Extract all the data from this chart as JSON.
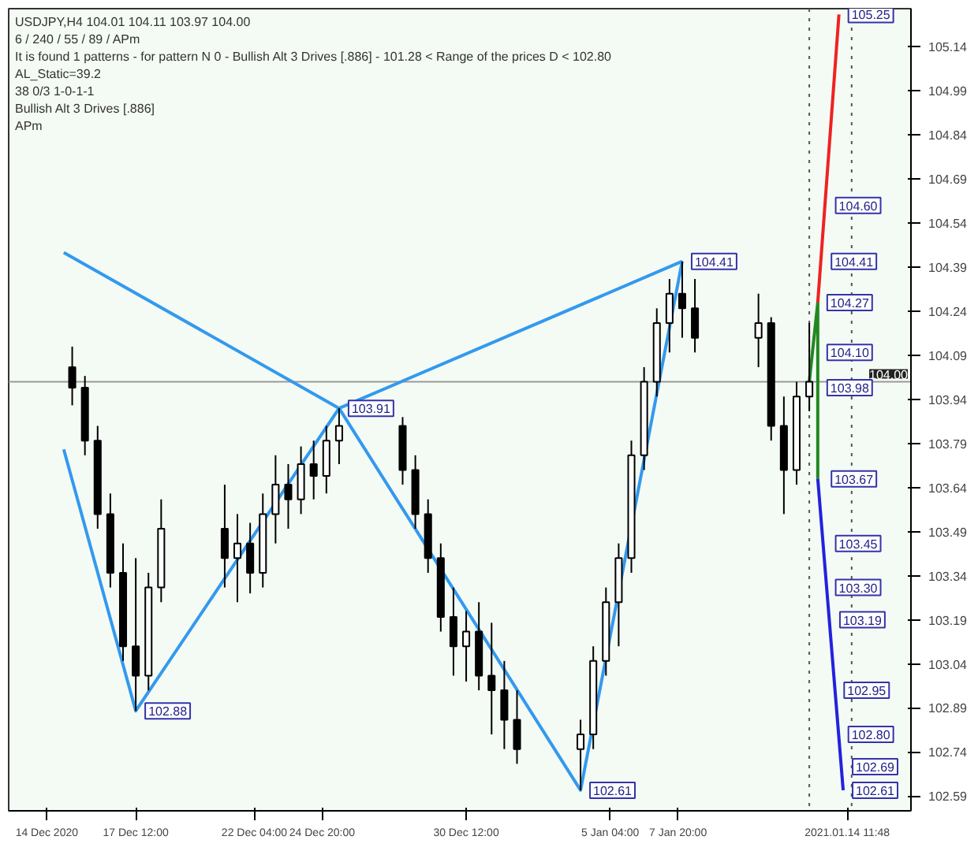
{
  "chart_data": {
    "type": "candlestick",
    "x": [
      "2020-12-15T00:00",
      "2020-12-15T12:00",
      "2020-12-16T00:00",
      "2020-12-16T12:00",
      "2020-12-17T00:00",
      "2020-12-17T12:00",
      "2020-12-18T00:00",
      "2020-12-18T12:00",
      "2020-12-21T00:00",
      "2020-12-21T12:00",
      "2020-12-22T00:00",
      "2020-12-22T12:00",
      "2020-12-23T00:00",
      "2020-12-23T12:00",
      "2020-12-24T00:00",
      "2020-12-24T12:00",
      "2020-12-25T00:00",
      "2020-12-25T12:00",
      "2020-12-28T00:00",
      "2020-12-28T12:00",
      "2020-12-29T00:00",
      "2020-12-29T12:00",
      "2020-12-30T00:00",
      "2020-12-30T12:00",
      "2020-12-31T00:00",
      "2020-12-31T12:00",
      "2021-01-01T00:00",
      "2021-01-01T12:00",
      "2021-01-04T00:00",
      "2021-01-04T12:00",
      "2021-01-05T00:00",
      "2021-01-05T12:00",
      "2021-01-06T00:00",
      "2021-01-06T12:00",
      "2021-01-07T00:00",
      "2021-01-07T12:00",
      "2021-01-08T00:00",
      "2021-01-08T12:00",
      "2021-01-11T00:00",
      "2021-01-11T12:00",
      "2021-01-12T00:00",
      "2021-01-12T12:00",
      "2021-01-13T00:00"
    ],
    "ohlc": [
      [
        104.05,
        104.12,
        103.92,
        103.98
      ],
      [
        103.98,
        104.02,
        103.75,
        103.8
      ],
      [
        103.8,
        103.85,
        103.5,
        103.55
      ],
      [
        103.55,
        103.62,
        103.3,
        103.35
      ],
      [
        103.35,
        103.45,
        103.05,
        103.1
      ],
      [
        103.1,
        103.4,
        102.88,
        103.0
      ],
      [
        103.0,
        103.35,
        102.95,
        103.3
      ],
      [
        103.3,
        103.6,
        103.25,
        103.5
      ],
      [
        103.5,
        103.65,
        103.3,
        103.4
      ],
      [
        103.4,
        103.55,
        103.25,
        103.45
      ],
      [
        103.45,
        103.52,
        103.28,
        103.35
      ],
      [
        103.35,
        103.62,
        103.3,
        103.55
      ],
      [
        103.55,
        103.75,
        103.45,
        103.65
      ],
      [
        103.65,
        103.72,
        103.5,
        103.6
      ],
      [
        103.6,
        103.78,
        103.55,
        103.72
      ],
      [
        103.72,
        103.8,
        103.6,
        103.68
      ],
      [
        103.68,
        103.85,
        103.62,
        103.8
      ],
      [
        103.8,
        103.91,
        103.72,
        103.85
      ],
      [
        103.85,
        103.88,
        103.65,
        103.7
      ],
      [
        103.7,
        103.75,
        103.5,
        103.55
      ],
      [
        103.55,
        103.6,
        103.35,
        103.4
      ],
      [
        103.4,
        103.45,
        103.15,
        103.2
      ],
      [
        103.2,
        103.3,
        103.0,
        103.1
      ],
      [
        103.1,
        103.22,
        102.98,
        103.15
      ],
      [
        103.15,
        103.25,
        102.95,
        103.0
      ],
      [
        103.0,
        103.18,
        102.8,
        102.95
      ],
      [
        102.95,
        103.05,
        102.75,
        102.85
      ],
      [
        102.85,
        102.95,
        102.7,
        102.75
      ],
      [
        102.75,
        102.85,
        102.61,
        102.8
      ],
      [
        102.8,
        103.1,
        102.75,
        103.05
      ],
      [
        103.05,
        103.3,
        103.0,
        103.25
      ],
      [
        103.25,
        103.45,
        103.1,
        103.4
      ],
      [
        103.4,
        103.8,
        103.35,
        103.75
      ],
      [
        103.75,
        104.05,
        103.7,
        104.0
      ],
      [
        104.0,
        104.25,
        103.95,
        104.2
      ],
      [
        104.2,
        104.35,
        104.1,
        104.3
      ],
      [
        104.3,
        104.41,
        104.15,
        104.25
      ],
      [
        104.25,
        104.35,
        104.1,
        104.15
      ],
      [
        104.15,
        104.3,
        104.05,
        104.2
      ],
      [
        104.2,
        104.22,
        103.8,
        103.85
      ],
      [
        103.85,
        103.95,
        103.55,
        103.7
      ],
      [
        103.7,
        104.0,
        103.65,
        103.95
      ],
      [
        103.95,
        104.2,
        103.9,
        104.0
      ]
    ],
    "series": [
      {
        "type": "line",
        "color": "#3399ee",
        "x": [
          "2020-12-14T16:00",
          "2020-12-25T12:00",
          "2021-01-08T00:00"
        ],
        "values": [
          104.44,
          103.91,
          104.41
        ]
      },
      {
        "type": "line",
        "color": "#3399ee",
        "x": [
          "2020-12-14T16:00",
          "2020-12-17T12:00",
          "2020-12-25T12:00",
          "2021-01-04T00:00",
          "2021-01-08T00:00"
        ],
        "values": [
          103.77,
          102.88,
          103.91,
          102.61,
          104.41
        ]
      },
      {
        "type": "line",
        "color": "#228822",
        "x": [
          "2021-01-13T00:00",
          "2021-01-13T08:00",
          "2021-01-13T08:00"
        ],
        "values": [
          104.0,
          104.27,
          103.67
        ]
      },
      {
        "type": "line",
        "color": "#ee2222",
        "x": [
          "2021-01-13T08:00",
          "2021-01-14T04:00"
        ],
        "values": [
          104.27,
          105.25
        ]
      },
      {
        "type": "line",
        "color": "#2222dd",
        "x": [
          "2021-01-13T08:00",
          "2021-01-14T08:00"
        ],
        "values": [
          103.67,
          102.61
        ]
      }
    ],
    "annotations": [
      "USDJPY,H4  104.01 104.11 103.97 104.00",
      "6 / 240 / 55 / 89 / APm",
      "It is found 1 patterns  -  for pattern N 0 - Bullish Alt 3 Drives [.886] - 101.28 < Range of the prices D < 102.80",
      "AL_Static=39.2",
      "38     0/3     1-0-1-1",
      "Bullish Alt 3 Drives [.886]",
      "APm",
      {
        "text": "103.91",
        "x": "2020-12-25T12:00",
        "y": 103.91
      },
      {
        "text": "104.41",
        "x": "2021-01-08T00:00",
        "y": 104.41
      },
      {
        "text": "102.88",
        "x": "2020-12-17T12:00",
        "y": 102.88
      },
      {
        "text": "102.61",
        "x": "2021-01-04T00:00",
        "y": 102.61
      },
      {
        "text": "105.25",
        "x": "2021-01-14T04:00",
        "y": 105.25
      },
      {
        "text": "104.60",
        "x": "2021-01-13T16:00",
        "y": 104.6
      },
      {
        "text": "104.41",
        "x": "2021-01-13T12:00",
        "y": 104.41
      },
      {
        "text": "104.27",
        "x": "2021-01-13T08:00",
        "y": 104.27
      },
      {
        "text": "104.10",
        "x": "2021-01-13T08:00",
        "y": 104.1
      },
      {
        "text": "103.98",
        "x": "2021-01-13T08:00",
        "y": 103.98
      },
      {
        "text": "103.67",
        "x": "2021-01-13T12:00",
        "y": 103.67
      },
      {
        "text": "103.45",
        "x": "2021-01-13T16:00",
        "y": 103.45
      },
      {
        "text": "103.30",
        "x": "2021-01-13T16:00",
        "y": 103.3
      },
      {
        "text": "103.19",
        "x": "2021-01-13T20:00",
        "y": 103.19
      },
      {
        "text": "102.95",
        "x": "2021-01-14T00:00",
        "y": 102.95
      },
      {
        "text": "102.80",
        "x": "2021-01-14T04:00",
        "y": 102.8
      },
      {
        "text": "102.69",
        "x": "2021-01-14T08:00",
        "y": 102.69
      },
      {
        "text": "102.61",
        "x": "2021-01-14T08:00",
        "y": 102.61
      }
    ],
    "ref_lines": [
      {
        "axis": "y",
        "value": 104.0,
        "label": "104.00",
        "color": "#999999"
      },
      {
        "axis": "x",
        "value": "2021-01-13T00:00",
        "color": "#555555",
        "line_style": "dotted"
      },
      {
        "axis": "x",
        "value": "2021-01-14T16:00",
        "color": "#555555",
        "line_style": "dotted"
      }
    ],
    "xlim": [
      "2020-12-12T12:00",
      "2021-01-17T00:00"
    ],
    "ylim": [
      102.54,
      105.27
    ],
    "xticks": [
      {
        "value": "2020-12-14T00:00",
        "label": "14 Dec 2020"
      },
      {
        "value": "2020-12-17T12:00",
        "label": "17 Dec 12:00"
      },
      {
        "value": "2020-12-22T04:00",
        "label": "22 Dec 04:00"
      },
      {
        "value": "2020-12-24T20:00",
        "label": "24 Dec 20:00"
      },
      {
        "value": "2020-12-30T12:00",
        "label": "30 Dec 12:00"
      },
      {
        "value": "2021-01-05T04:00",
        "label": "5 Jan 04:00"
      },
      {
        "value": "2021-01-07T20:00",
        "label": "7 Jan 20:00"
      },
      {
        "value": "2021-01-14T11:48",
        "label": "2021.01.14 11:48"
      }
    ],
    "yticks": [
      105.14,
      104.99,
      104.84,
      104.69,
      104.54,
      104.39,
      104.24,
      104.09,
      103.94,
      103.79,
      103.64,
      103.49,
      103.34,
      103.19,
      103.04,
      102.89,
      102.74,
      102.59
    ],
    "grid": false
  }
}
